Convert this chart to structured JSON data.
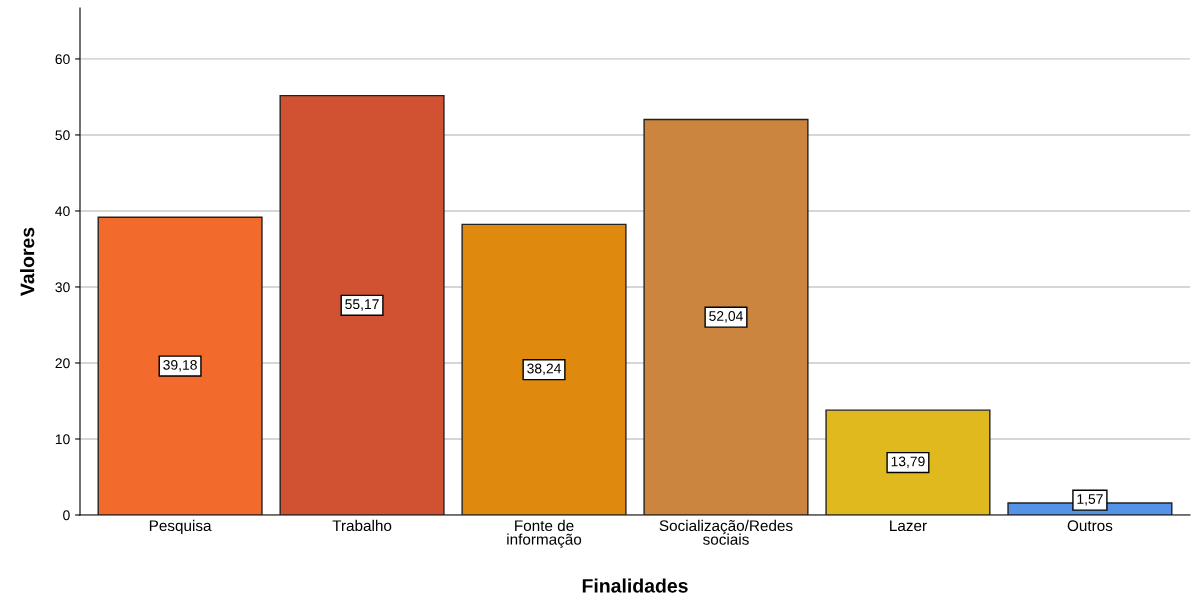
{
  "chart_data": {
    "type": "bar",
    "xlabel": "Finalidades",
    "ylabel": "Valores",
    "categories": [
      "Pesquisa",
      "Trabalho",
      "Fonte de\ninformação",
      "Socialização/Redes\nsociais",
      "Lazer",
      "Outros"
    ],
    "values": [
      39.18,
      55.17,
      38.24,
      52.04,
      13.79,
      1.57
    ],
    "colors": [
      "#f26a2c",
      "#d15233",
      "#e0890f",
      "#cc853f",
      "#e0b91f",
      "#5593e8"
    ],
    "value_labels": [
      "39,18",
      "55,17",
      "38,24",
      "52,04",
      "13,79",
      "1,57"
    ],
    "ylim": [
      0,
      66.7
    ],
    "yticks": [
      0,
      10,
      20,
      30,
      40,
      50,
      60
    ],
    "grid": "y"
  }
}
